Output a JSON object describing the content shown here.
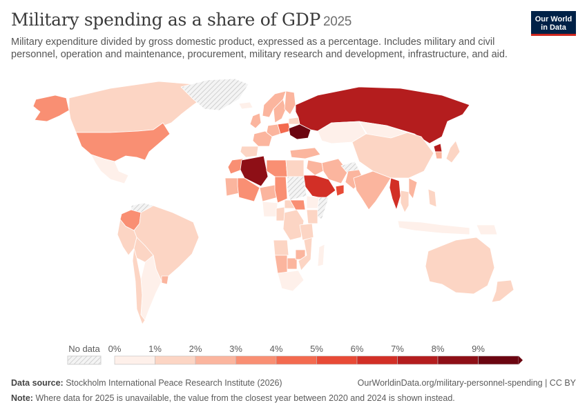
{
  "header": {
    "title": "Military spending as a share of GDP",
    "year": "2025",
    "subtitle": "Military expenditure divided by gross domestic product, expressed as a percentage. Includes military and civil personnel, operation and maintenance, procurement, military research and development, infrastructure, and aid."
  },
  "logo": {
    "line1": "Our World",
    "line2": "in Data"
  },
  "legend": {
    "no_data_label": "No data",
    "ticks": [
      "0%",
      "1%",
      "2%",
      "3%",
      "4%",
      "5%",
      "6%",
      "7%",
      "8%",
      "9%"
    ],
    "colors": [
      "#fef0ea",
      "#fcd5c4",
      "#fbb59e",
      "#f98f73",
      "#f36a4f",
      "#e84a36",
      "#d22f26",
      "#b41d1e",
      "#8e0f16",
      "#6b0510"
    ]
  },
  "footer": {
    "source_label": "Data source:",
    "source_text": "Stockholm International Peace Research Institute (2026)",
    "url_text": "OurWorldinData.org/military-personnel-spending | CC BY",
    "note_label": "Note:",
    "note_text": "Where data for 2025 is unavailable, the value from the closest year between 2020 and 2024 is shown instead."
  },
  "map_regions": [
    {
      "name": "Alaska",
      "pct": 3.4
    },
    {
      "name": "Canada",
      "pct": 1.3
    },
    {
      "name": "United States",
      "pct": 3.4
    },
    {
      "name": "Mexico",
      "pct": 0.6
    },
    {
      "name": "Colombia",
      "pct": 3.1
    },
    {
      "name": "Venezuela",
      "pct": null
    },
    {
      "name": "Brazil",
      "pct": 1.1
    },
    {
      "name": "Peru",
      "pct": 1.1
    },
    {
      "name": "Bolivia",
      "pct": 1.2
    },
    {
      "name": "Argentina",
      "pct": 0.5
    },
    {
      "name": "Chile",
      "pct": 1.5
    },
    {
      "name": "Uruguay",
      "pct": 2.1
    },
    {
      "name": "Greenland",
      "pct": null
    },
    {
      "name": "Iceland",
      "pct": 0.1
    },
    {
      "name": "Norway",
      "pct": 2.2
    },
    {
      "name": "Sweden",
      "pct": 2.4
    },
    {
      "name": "Finland",
      "pct": 2.4
    },
    {
      "name": "United Kingdom",
      "pct": 2.3
    },
    {
      "name": "France",
      "pct": 2.1
    },
    {
      "name": "Spain",
      "pct": 1.3
    },
    {
      "name": "Germany",
      "pct": 2.1
    },
    {
      "name": "Poland",
      "pct": 4.2
    },
    {
      "name": "Ukraine",
      "pct": 9.5
    },
    {
      "name": "Belarus",
      "pct": 1.5
    },
    {
      "name": "Russia",
      "pct": 7.3
    },
    {
      "name": "Turkey",
      "pct": 2.1
    },
    {
      "name": "Kazakhstan",
      "pct": 0.5
    },
    {
      "name": "Mongolia",
      "pct": 0.8
    },
    {
      "name": "China",
      "pct": 1.7
    },
    {
      "name": "North Korea",
      "pct": 7.5
    },
    {
      "name": "South Korea",
      "pct": 2.7
    },
    {
      "name": "Japan",
      "pct": 1.4
    },
    {
      "name": "Iran",
      "pct": 2.1
    },
    {
      "name": "Iraq",
      "pct": 2.6
    },
    {
      "name": "Saudi Arabia",
      "pct": 6.1
    },
    {
      "name": "Oman",
      "pct": 5.7
    },
    {
      "name": "Afghanistan",
      "pct": null
    },
    {
      "name": "Pakistan",
      "pct": 2.8
    },
    {
      "name": "India",
      "pct": 2.4
    },
    {
      "name": "Myanmar",
      "pct": 6.8
    },
    {
      "name": "Thailand",
      "pct": 1.3
    },
    {
      "name": "Vietnam",
      "pct": 2.3
    },
    {
      "name": "Indonesia",
      "pct": 0.7
    },
    {
      "name": "Philippines",
      "pct": 1.2
    },
    {
      "name": "Papua New Guinea",
      "pct": 0.4
    },
    {
      "name": "Australia",
      "pct": 1.9
    },
    {
      "name": "New Zealand",
      "pct": 1.2
    },
    {
      "name": "Morocco",
      "pct": 3.9
    },
    {
      "name": "Algeria",
      "pct": 8.1
    },
    {
      "name": "Mauritania",
      "pct": 2.2
    },
    {
      "name": "Mali",
      "pct": 3.2
    },
    {
      "name": "Niger",
      "pct": 2.2
    },
    {
      "name": "Chad",
      "pct": 3.0
    },
    {
      "name": "Libya",
      "pct": 3.1
    },
    {
      "name": "Egypt",
      "pct": 1.1
    },
    {
      "name": "Sudan",
      "pct": null
    },
    {
      "name": "Ethiopia",
      "pct": 0.9
    },
    {
      "name": "Somalia",
      "pct": null
    },
    {
      "name": "Nigeria",
      "pct": 0.6
    },
    {
      "name": "Cameroon",
      "pct": 1.0
    },
    {
      "name": "Central African Republic",
      "pct": 1.6
    },
    {
      "name": "South Sudan",
      "pct": 3.3
    },
    {
      "name": "DR Congo",
      "pct": 1.4
    },
    {
      "name": "Angola",
      "pct": 1.3
    },
    {
      "name": "Namibia",
      "pct": 2.8
    },
    {
      "name": "South Africa",
      "pct": 0.7
    },
    {
      "name": "Botswana",
      "pct": 2.4
    },
    {
      "name": "Zimbabwe",
      "pct": 2.8
    },
    {
      "name": "Mozambique",
      "pct": 1.2
    },
    {
      "name": "Tanzania",
      "pct": 1.0
    },
    {
      "name": "Kenya",
      "pct": 1.0
    },
    {
      "name": "Madagascar",
      "pct": 0.7
    }
  ]
}
